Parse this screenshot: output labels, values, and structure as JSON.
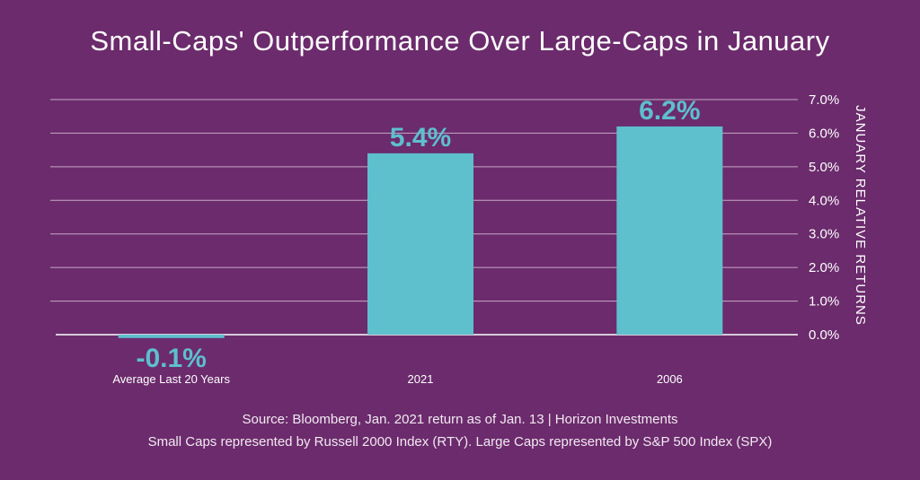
{
  "chart_data": {
    "type": "bar",
    "title": "Small-Caps' Outperformance Over Large-Caps in January",
    "categories": [
      "Average Last 20 Years",
      "2021",
      "2006"
    ],
    "values": [
      -0.1,
      5.4,
      6.2
    ],
    "data_labels": [
      "-0.1%",
      "5.4%",
      "6.2%"
    ],
    "ylabel": "JANUARY RELATIVE RETURNS",
    "xlabel": "",
    "ylim": [
      0,
      7
    ],
    "yticks": [
      0,
      1,
      2,
      3,
      4,
      5,
      6,
      7
    ],
    "ytick_labels": [
      "0.0%",
      "1.0%",
      "2.0%",
      "3.0%",
      "4.0%",
      "5.0%",
      "6.0%",
      "7.0%"
    ],
    "y_axis_side": "right",
    "grid": true,
    "bar_color": "#5ebfcd",
    "background_color": "#6b2b6c"
  },
  "footer": {
    "source_line_1": "Source: Bloomberg, Jan. 2021 return as of Jan. 13 | Horizon Investments",
    "source_line_2": "Small Caps represented by Russell 2000 Index (RTY). Large Caps represented by S&P 500 Index (SPX)"
  }
}
